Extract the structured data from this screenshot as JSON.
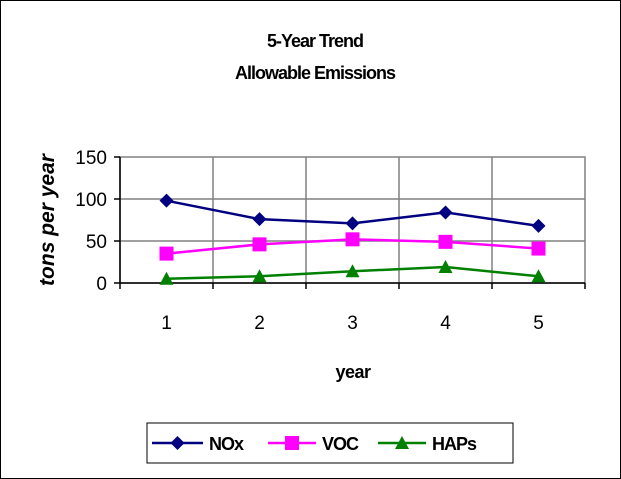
{
  "chart_data": {
    "type": "line",
    "title_line1": "5-Year Trend",
    "title_line2": "Allowable Emissions",
    "xlabel": "year",
    "ylabel": "tons per year",
    "x": [
      1,
      2,
      3,
      4,
      5
    ],
    "x_tick_labels": [
      "1",
      "2",
      "3",
      "4",
      "5"
    ],
    "ylim": [
      0,
      150
    ],
    "y_ticks": [
      0,
      50,
      100,
      150
    ],
    "y_tick_labels": [
      "0",
      "50",
      "100",
      "150"
    ],
    "grid": "vertical and horizontal",
    "legend_position": "bottom",
    "series": [
      {
        "name": "NOx",
        "values": [
          98,
          76,
          71,
          84,
          68
        ],
        "color": "#000080",
        "marker": "diamond"
      },
      {
        "name": "VOC",
        "values": [
          35,
          46,
          52,
          49,
          41
        ],
        "color": "#ff00ff",
        "marker": "square"
      },
      {
        "name": "HAPs",
        "values": [
          5,
          8,
          14,
          19,
          8
        ],
        "color": "#008000",
        "marker": "triangle"
      }
    ]
  }
}
